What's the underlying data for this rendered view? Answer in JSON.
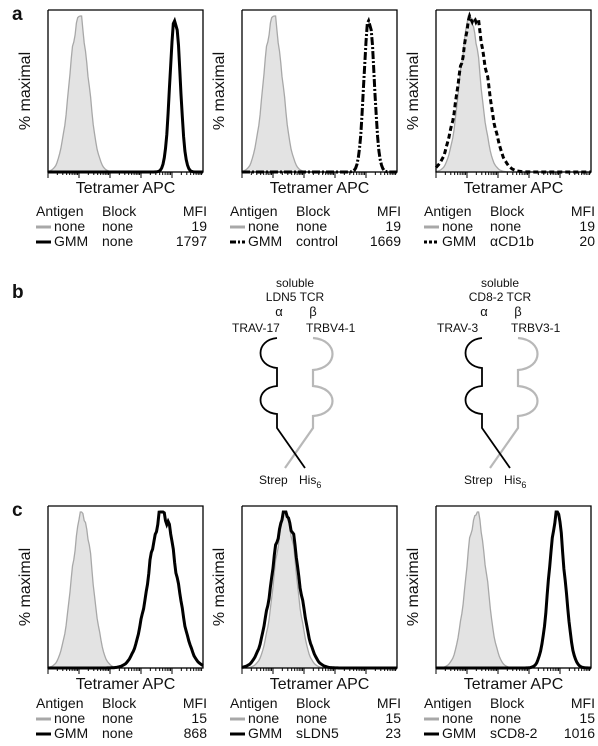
{
  "figure": {
    "panel_labels": {
      "a": "a",
      "b": "b",
      "c": "c"
    },
    "y_axis_label": "% maximal",
    "x_axis_label": "Tetramer APC",
    "legend_headers": {
      "antigen": "Antigen",
      "block": "Block",
      "mfi": "MFI"
    },
    "colors": {
      "control_fill": "#e3e3e3",
      "control_line": "#a8a8a8",
      "sample_line": "#000000"
    }
  },
  "chart_data": [
    {
      "type": "area",
      "panel": "a",
      "index": 1,
      "rows": [
        {
          "style": "gray",
          "antigen": "none",
          "block": "none",
          "mfi": "19"
        },
        {
          "style": "black",
          "antigen": "GMM",
          "block": "none",
          "mfi": "1797"
        }
      ],
      "series": [
        {
          "center": 0.2,
          "width": 0.06
        },
        {
          "center": 0.82,
          "width": 0.032
        }
      ]
    },
    {
      "type": "area",
      "panel": "a",
      "index": 2,
      "rows": [
        {
          "style": "gray",
          "antigen": "none",
          "block": "none",
          "mfi": "19"
        },
        {
          "style": "dashdot",
          "antigen": "GMM",
          "block": "control",
          "mfi": "1669"
        }
      ],
      "series": [
        {
          "center": 0.2,
          "width": 0.06
        },
        {
          "center": 0.82,
          "width": 0.032
        }
      ]
    },
    {
      "type": "area",
      "panel": "a",
      "index": 3,
      "rows": [
        {
          "style": "gray",
          "antigen": "none",
          "block": "none",
          "mfi": "19"
        },
        {
          "style": "dashed",
          "antigen": "GMM",
          "block": "αCD1b",
          "mfi": "20"
        }
      ],
      "series": [
        {
          "center": 0.22,
          "width": 0.065
        },
        {
          "center": 0.24,
          "width": 0.09
        }
      ]
    },
    {
      "type": "area",
      "panel": "c",
      "index": 1,
      "rows": [
        {
          "style": "gray",
          "antigen": "none",
          "block": "none",
          "mfi": "15"
        },
        {
          "style": "black",
          "antigen": "GMM",
          "block": "none",
          "mfi": "868"
        }
      ],
      "series": [
        {
          "center": 0.22,
          "width": 0.065
        },
        {
          "center": 0.74,
          "width": 0.09
        }
      ]
    },
    {
      "type": "area",
      "panel": "c",
      "index": 2,
      "rows": [
        {
          "style": "gray",
          "antigen": "none",
          "block": "none",
          "mfi": "15"
        },
        {
          "style": "black",
          "antigen": "GMM",
          "block": "sLDN5",
          "mfi": "23"
        }
      ],
      "series": [
        {
          "center": 0.28,
          "width": 0.07
        },
        {
          "center": 0.28,
          "width": 0.085
        }
      ]
    },
    {
      "type": "area",
      "panel": "c",
      "index": 3,
      "rows": [
        {
          "style": "gray",
          "antigen": "none",
          "block": "none",
          "mfi": "15"
        },
        {
          "style": "black",
          "antigen": "GMM",
          "block": "sCD8-2",
          "mfi": "1016"
        }
      ],
      "series": [
        {
          "center": 0.26,
          "width": 0.065
        },
        {
          "center": 0.78,
          "width": 0.05
        }
      ]
    }
  ],
  "tcr_diagrams": [
    {
      "title_top": "soluble",
      "title_bottom": "LDN5 TCR",
      "alpha": "α",
      "beta": "β",
      "left_gene": "TRAV-17",
      "right_gene": "TRBV4-1",
      "left_tag": "Strep",
      "right_tag": "His",
      "right_tag_sub": "6"
    },
    {
      "title_top": "soluble",
      "title_bottom": "CD8-2 TCR",
      "alpha": "α",
      "beta": "β",
      "left_gene": "TRAV-3",
      "right_gene": "TRBV3-1",
      "left_tag": "Strep",
      "right_tag": "His",
      "right_tag_sub": "6"
    }
  ]
}
